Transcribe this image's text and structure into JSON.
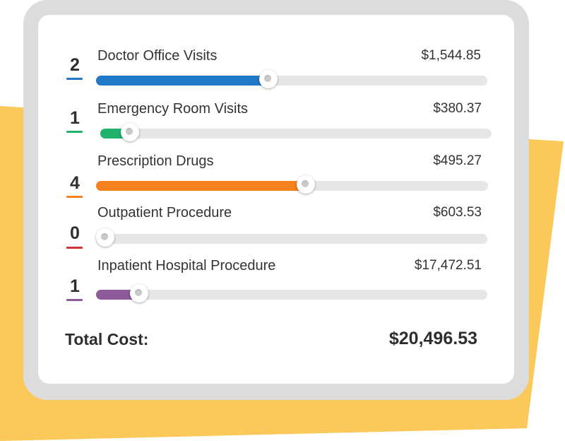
{
  "colors": {
    "yellow": "#fbc85a",
    "yellow_shadow": "#e0b04a",
    "frame": "#dcdcdc",
    "track": "#e6e6e6"
  },
  "rows": [
    {
      "count": "2",
      "label": "Doctor Office Visits",
      "amount": "$1,544.85",
      "color": "#1f78c8",
      "level": 0.44
    },
    {
      "count": "1",
      "label": "Emergency Room Visits",
      "amount": "$380.37",
      "color": "#1fb36b",
      "level": 0.075
    },
    {
      "count": "4",
      "label": "Prescription Drugs",
      "amount": "$495.27",
      "color": "#f5821f",
      "level": 0.535
    },
    {
      "count": "0",
      "label": "Outpatient Procedure",
      "amount": "$603.53",
      "color": "#cc3333",
      "level": 0.0
    },
    {
      "count": "1",
      "label": "Inpatient Hospital Procedure",
      "amount": "$17,472.51",
      "color": "#8e5a9a",
      "level": 0.11
    }
  ],
  "total": {
    "label": "Total Cost:",
    "value": "$20,496.53"
  }
}
